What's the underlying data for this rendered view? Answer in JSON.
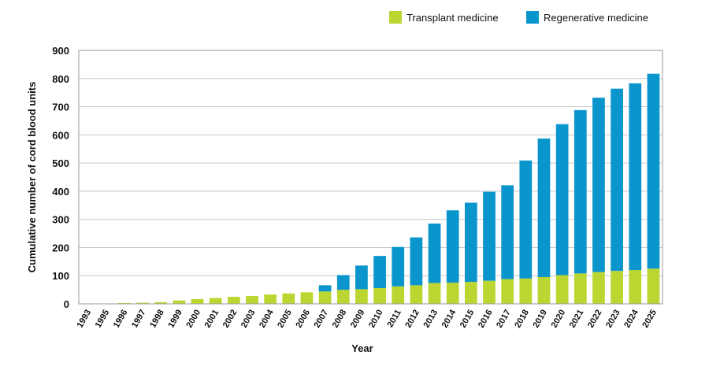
{
  "chart_data": {
    "type": "bar",
    "stacked": true,
    "title": "",
    "xlabel": "Year",
    "ylabel": "Cumulative number of cord blood units",
    "ylim": [
      0,
      900
    ],
    "yticks": [
      0,
      100,
      200,
      300,
      400,
      500,
      600,
      700,
      800,
      900
    ],
    "categories": [
      "1993",
      "1995",
      "1996",
      "1997",
      "1998",
      "1999",
      "2000",
      "2001",
      "2002",
      "2003",
      "2004",
      "2005",
      "2006",
      "2007",
      "2008",
      "2009",
      "2010",
      "2011",
      "2012",
      "2013",
      "2014",
      "2015",
      "2016",
      "2017",
      "2018",
      "2019",
      "2020",
      "2021",
      "2022",
      "2023",
      "2024",
      "2025"
    ],
    "series": [
      {
        "name": "Transplant medicine",
        "color": "#bcd631",
        "values": [
          1,
          1,
          3,
          4,
          6,
          12,
          17,
          21,
          25,
          28,
          33,
          37,
          41,
          44,
          50,
          52,
          56,
          62,
          66,
          74,
          75,
          78,
          82,
          88,
          90,
          95,
          102,
          108,
          113,
          117,
          120,
          125
        ]
      },
      {
        "name": "Regenerative medicine",
        "color": "#0a95cd",
        "values": [
          0,
          0,
          0,
          0,
          0,
          0,
          0,
          0,
          0,
          0,
          0,
          0,
          0,
          22,
          52,
          84,
          114,
          140,
          170,
          211,
          257,
          281,
          316,
          333,
          419,
          492,
          536,
          580,
          619,
          647,
          663,
          692
        ]
      }
    ],
    "legend": {
      "position": "top-right",
      "entries": [
        "Transplant medicine",
        "Regenerative medicine"
      ]
    },
    "grid": true
  }
}
